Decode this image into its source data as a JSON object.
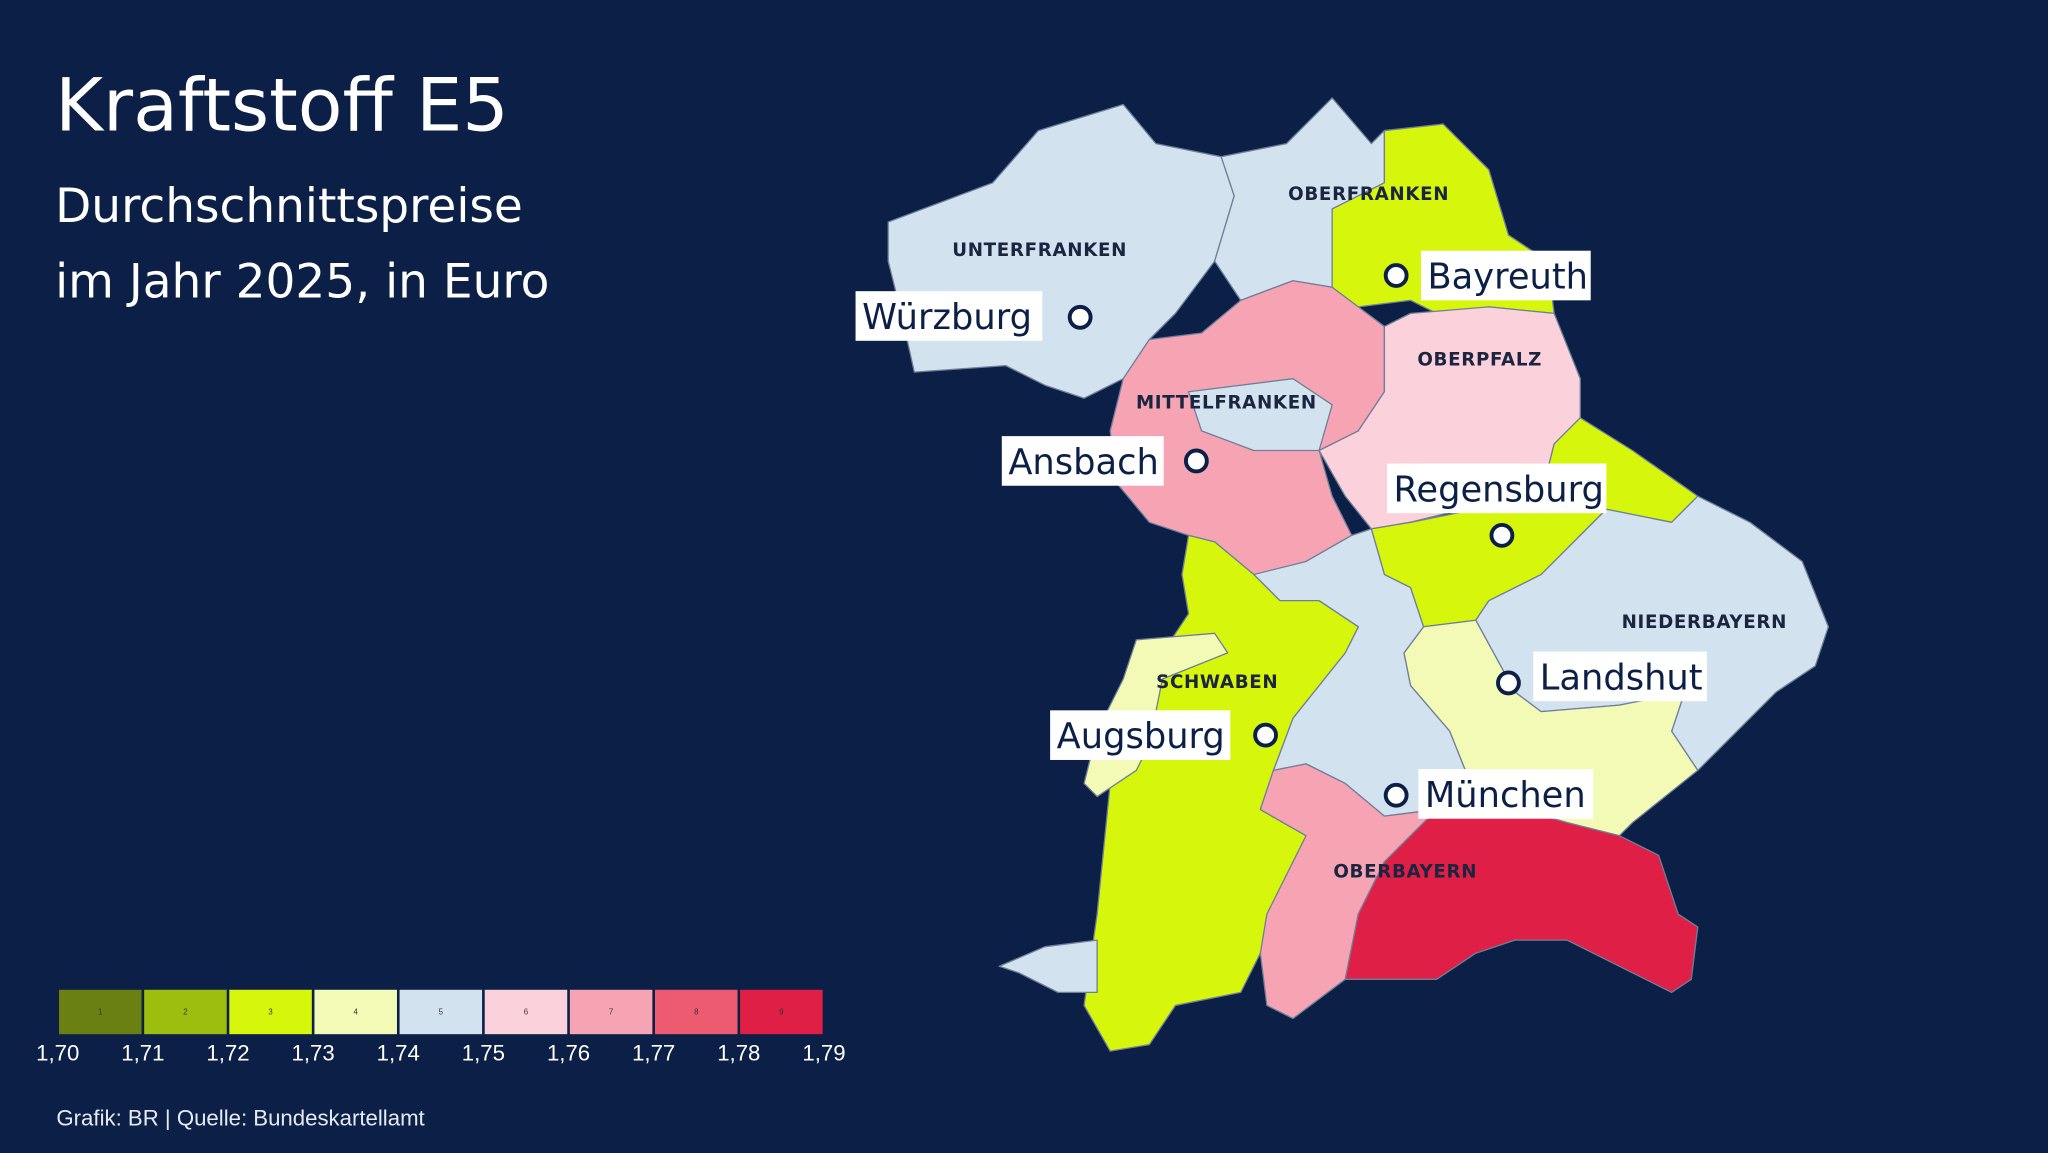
{
  "title": "Kraftstoff E5",
  "subtitle_line1": "Durchschnittspreise",
  "subtitle_line2": "im Jahr 2025, in Euro",
  "footer": "Grafik: BR | Quelle: Bundeskartellamt",
  "background_color": "#0b1f47",
  "legend": {
    "classes": [
      {
        "num": "1",
        "color": "#6b8013"
      },
      {
        "num": "2",
        "color": "#9dbe0e"
      },
      {
        "num": "3",
        "color": "#d6f70b"
      },
      {
        "num": "4",
        "color": "#f2fab6"
      },
      {
        "num": "5",
        "color": "#d3e2ef"
      },
      {
        "num": "6",
        "color": "#fbd1db"
      },
      {
        "num": "7",
        "color": "#f6a4b4"
      },
      {
        "num": "8",
        "color": "#ed5b71"
      },
      {
        "num": "9",
        "color": "#df1f46"
      }
    ],
    "ticks": [
      "1,70",
      "1,71",
      "1,72",
      "1,73",
      "1,74",
      "1,75",
      "1,76",
      "1,77",
      "1,78",
      "1,79"
    ]
  },
  "regions": [
    "UNTERFRANKEN",
    "OBERFRANKEN",
    "OBERPFALZ",
    "MITTELFRANKEN",
    "NIEDERBAYERN",
    "SCHWABEN",
    "OBERBAYERN"
  ],
  "cities": [
    "Würzburg",
    "Bayreuth",
    "Ansbach",
    "Regensburg",
    "Landshut",
    "Augsburg",
    "München"
  ]
}
